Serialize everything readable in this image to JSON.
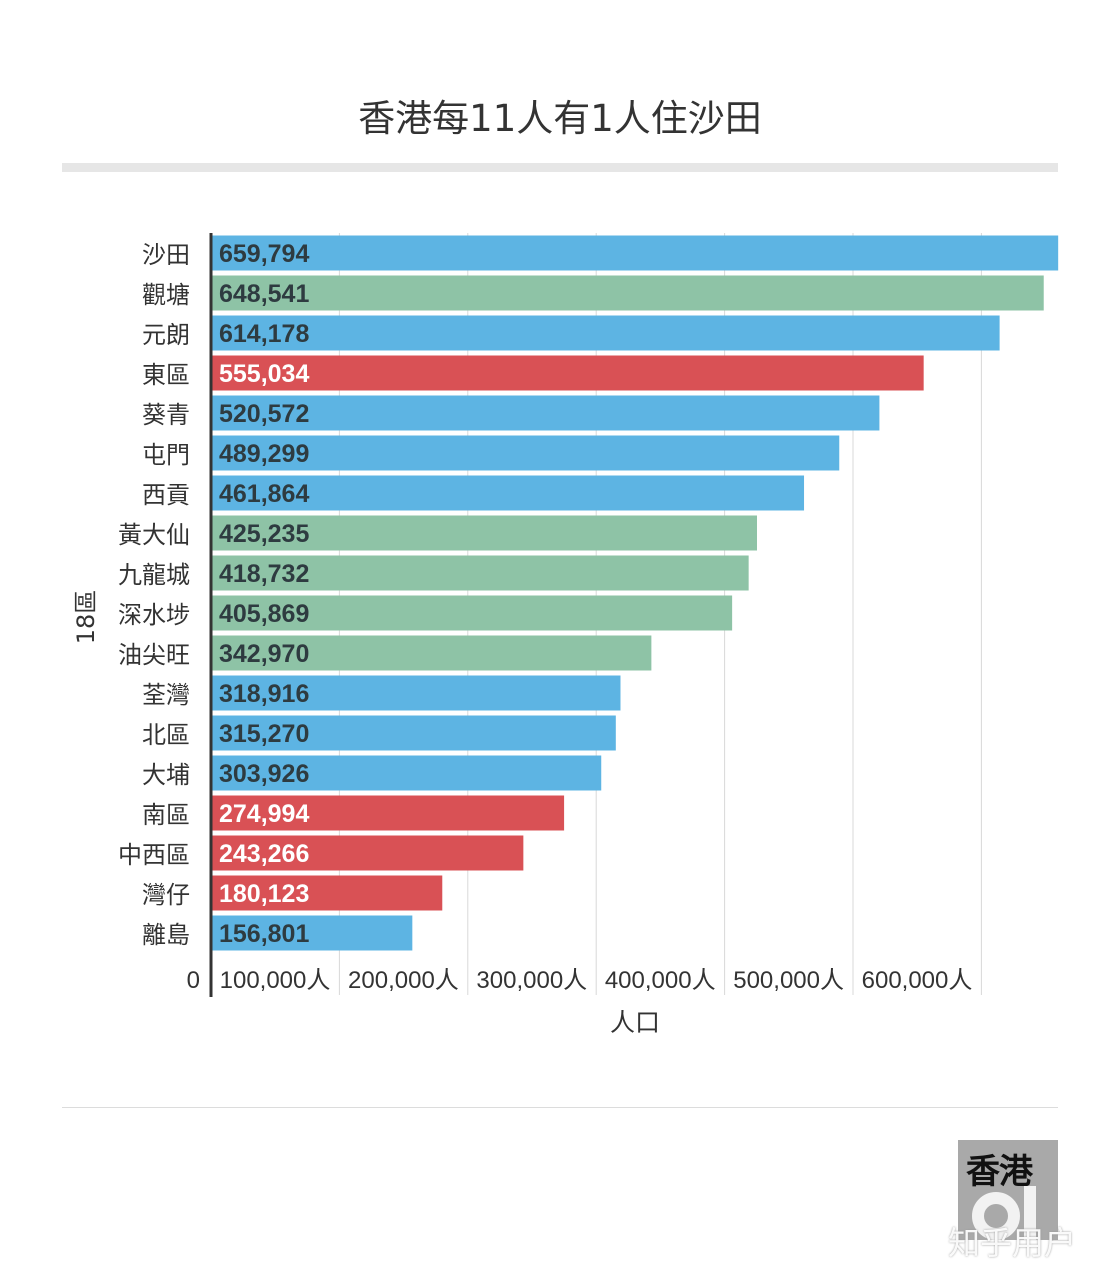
{
  "chart_data": {
    "type": "bar",
    "orientation": "horizontal",
    "title": "香港每11人有1人住沙田",
    "xlabel": "人口",
    "ylabel": "18區",
    "xlim": [
      0,
      660000
    ],
    "xticks": [
      0,
      100000,
      200000,
      300000,
      400000,
      500000,
      600000
    ],
    "xtick_labels": [
      "0",
      "100,000人",
      "200,000人",
      "300,000人",
      "400,000人",
      "500,000人",
      "600,000人"
    ],
    "grid": "vertical",
    "legend": "none",
    "colors": {
      "blue": "#5db4e3",
      "green": "#8ec3a6",
      "red": "#d95155"
    },
    "categories": [
      "沙田",
      "觀塘",
      "元朗",
      "東區",
      "葵青",
      "屯門",
      "西貢",
      "黃大仙",
      "九龍城",
      "深水埗",
      "油尖旺",
      "荃灣",
      "北區",
      "大埔",
      "南區",
      "中西區",
      "灣仔",
      "離島"
    ],
    "values": [
      659794,
      648541,
      614178,
      555034,
      520572,
      489299,
      461864,
      425235,
      418732,
      405869,
      342970,
      318916,
      315270,
      303926,
      274994,
      243266,
      180123,
      156801
    ],
    "value_labels": [
      "659,794",
      "648,541",
      "614,178",
      "555,034",
      "520,572",
      "489,299",
      "461,864",
      "425,235",
      "418,732",
      "405,869",
      "342,970",
      "318,916",
      "315,270",
      "303,926",
      "274,994",
      "243,266",
      "180,123",
      "156,801"
    ],
    "bar_colors": [
      "blue",
      "green",
      "blue",
      "red",
      "blue",
      "blue",
      "blue",
      "green",
      "green",
      "green",
      "green",
      "blue",
      "blue",
      "blue",
      "red",
      "red",
      "red",
      "blue"
    ]
  },
  "logo": {
    "text": "香港01"
  },
  "watermark": "知乎用户"
}
